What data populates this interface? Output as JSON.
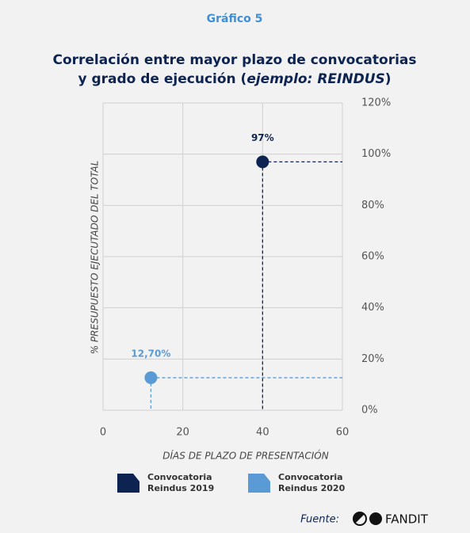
{
  "chart_data": {
    "type": "scatter",
    "kicker": "Gráfico 5",
    "title_parts": [
      "Correlación entre mayor plazo de convocatorias",
      "y grado de ejecución (",
      "ejemplo: REINDUS",
      ")"
    ],
    "x_label": "DÍAS DE PLAZO DE PRESENTACIÓN",
    "y_label": "% PRESUPUESTO EJECUTADO DEL TOTAL",
    "xlim": [
      0,
      60
    ],
    "xticks": [
      0,
      20,
      40,
      60
    ],
    "ylim": [
      0,
      120
    ],
    "yticks": [
      {
        "value": 0,
        "label": "0%"
      },
      {
        "value": 20,
        "label": "20%"
      },
      {
        "value": 40,
        "label": "40%"
      },
      {
        "value": 60,
        "label": "60%"
      },
      {
        "value": 80,
        "label": "80%"
      },
      {
        "value": 100,
        "label": "100%"
      },
      {
        "value": 120,
        "label": "120%"
      }
    ],
    "grid": true,
    "series": [
      {
        "name": "Convocatoria Reindus 2019",
        "color": "#0d2452",
        "x": [
          40
        ],
        "values": [
          97
        ],
        "value_labels": [
          "97%"
        ]
      },
      {
        "name": "Convocatoria Reindus 2020",
        "color": "#5b9bd5",
        "x": [
          12
        ],
        "values": [
          12.7
        ],
        "value_labels": [
          "12,70%"
        ]
      }
    ],
    "source_label": "Fuente:",
    "source": "FANDIT"
  }
}
